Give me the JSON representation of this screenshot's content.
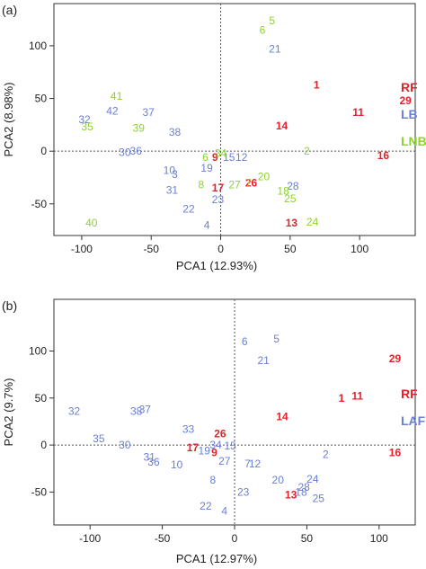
{
  "chart_data": [
    {
      "panel_label": "(a)",
      "type": "scatter",
      "xlabel": "PCA1 (12.93%)",
      "ylabel": "PCA2 (8.98%)",
      "xlim": [
        -120,
        140
      ],
      "ylim": [
        -80,
        140
      ],
      "xticks": [
        -100,
        -50,
        0,
        50,
        100
      ],
      "yticks": [
        -50,
        0,
        50,
        100
      ],
      "grid": false,
      "zero_lines": true,
      "legend_placement": "right",
      "series": [
        {
          "name": "RF",
          "color": "#e8202a",
          "points": [
            {
              "label": "1",
              "x": 69,
              "y": 63
            },
            {
              "label": "29",
              "x": 133,
              "y": 48
            },
            {
              "label": "11",
              "x": 99,
              "y": 37
            },
            {
              "label": "14",
              "x": 44,
              "y": 24
            },
            {
              "label": "16",
              "x": 117,
              "y": -4
            },
            {
              "label": "9",
              "x": -4,
              "y": -6
            },
            {
              "label": "26",
              "x": 22,
              "y": -30
            },
            {
              "label": "17",
              "x": -2,
              "y": -35
            },
            {
              "label": "13",
              "x": 51,
              "y": -68
            }
          ]
        },
        {
          "name": "LB",
          "color": "#6a7fd6",
          "points": [
            {
              "label": "21",
              "x": 39,
              "y": 97
            },
            {
              "label": "37",
              "x": -52,
              "y": 37
            },
            {
              "label": "42",
              "x": -78,
              "y": 38
            },
            {
              "label": "32",
              "x": -98,
              "y": 30
            },
            {
              "label": "38",
              "x": -33,
              "y": 18
            },
            {
              "label": "30",
              "x": -69,
              "y": -1
            },
            {
              "label": "36",
              "x": -61,
              "y": 0
            },
            {
              "label": "15",
              "x": 6,
              "y": -6
            },
            {
              "label": "12",
              "x": 15,
              "y": -6
            },
            {
              "label": "19",
              "x": -10,
              "y": -16
            },
            {
              "label": "10",
              "x": -37,
              "y": -18
            },
            {
              "label": "3",
              "x": -33,
              "y": -22
            },
            {
              "label": "31",
              "x": -35,
              "y": -37
            },
            {
              "label": "28",
              "x": 52,
              "y": -33
            },
            {
              "label": "22",
              "x": -23,
              "y": -55
            },
            {
              "label": "23",
              "x": -2,
              "y": -46
            },
            {
              "label": "4",
              "x": -10,
              "y": -70
            }
          ]
        },
        {
          "name": "LNB",
          "color": "#8fd12e",
          "points": [
            {
              "label": "5",
              "x": 37,
              "y": 124
            },
            {
              "label": "6",
              "x": 30,
              "y": 115
            },
            {
              "label": "41",
              "x": -75,
              "y": 52
            },
            {
              "label": "39",
              "x": -59,
              "y": 22
            },
            {
              "label": "35",
              "x": -96,
              "y": 23
            },
            {
              "label": "34",
              "x": 0,
              "y": -2
            },
            {
              "label": "2",
              "x": 62,
              "y": 0
            },
            {
              "label": "6",
              "x": -11,
              "y": -6
            },
            {
              "label": "20",
              "x": 31,
              "y": -24
            },
            {
              "label": "27",
              "x": 10,
              "y": -32
            },
            {
              "label": "7",
              "x": 20,
              "y": -30
            },
            {
              "label": "8",
              "x": -14,
              "y": -32
            },
            {
              "label": "18",
              "x": 45,
              "y": -38
            },
            {
              "label": "25",
              "x": 50,
              "y": -45
            },
            {
              "label": "24",
              "x": 66,
              "y": -67
            },
            {
              "label": "40",
              "x": -93,
              "y": -68
            }
          ]
        }
      ]
    },
    {
      "panel_label": "(b)",
      "type": "scatter",
      "xlabel": "PCA1 (12.97%)",
      "ylabel": "PCA2 (9.7%)",
      "xlim": [
        -125,
        125
      ],
      "ylim": [
        -85,
        155
      ],
      "xticks": [
        -100,
        -50,
        0,
        50,
        100
      ],
      "yticks": [
        -50,
        0,
        50,
        100
      ],
      "grid": false,
      "zero_lines": true,
      "legend_placement": "right",
      "series": [
        {
          "name": "RF",
          "color": "#e8202a",
          "points": [
            {
              "label": "29",
              "x": 111,
              "y": 92
            },
            {
              "label": "11",
              "x": 85,
              "y": 52
            },
            {
              "label": "1",
              "x": 74,
              "y": 50
            },
            {
              "label": "14",
              "x": 33,
              "y": 30
            },
            {
              "label": "26",
              "x": -10,
              "y": 12
            },
            {
              "label": "16",
              "x": 111,
              "y": -8
            },
            {
              "label": "17",
              "x": -29,
              "y": -3
            },
            {
              "label": "9",
              "x": -14,
              "y": -8
            },
            {
              "label": "13",
              "x": 39,
              "y": -53
            }
          ]
        },
        {
          "name": "LAF",
          "color": "#6a7fd6",
          "points": [
            {
              "label": "6",
              "x": 7,
              "y": 110
            },
            {
              "label": "5",
              "x": 29,
              "y": 113
            },
            {
              "label": "21",
              "x": 20,
              "y": 90
            },
            {
              "label": "32",
              "x": -111,
              "y": 36
            },
            {
              "label": "38",
              "x": -68,
              "y": 36
            },
            {
              "label": "37",
              "x": -62,
              "y": 38
            },
            {
              "label": "33",
              "x": -32,
              "y": 17
            },
            {
              "label": "35",
              "x": -94,
              "y": 7
            },
            {
              "label": "30",
              "x": -76,
              "y": 0
            },
            {
              "label": "34",
              "x": -13,
              "y": 0
            },
            {
              "label": "15",
              "x": -3,
              "y": -1
            },
            {
              "label": "19",
              "x": -21,
              "y": -6
            },
            {
              "label": "2",
              "x": 63,
              "y": -10
            },
            {
              "label": "31",
              "x": -59,
              "y": -13
            },
            {
              "label": "36",
              "x": -56,
              "y": -18
            },
            {
              "label": "10",
              "x": -40,
              "y": -21
            },
            {
              "label": "27",
              "x": -7,
              "y": -17
            },
            {
              "label": "7",
              "x": 9,
              "y": -20
            },
            {
              "label": "12",
              "x": 14,
              "y": -20
            },
            {
              "label": "8",
              "x": -15,
              "y": -37
            },
            {
              "label": "20",
              "x": 30,
              "y": -37
            },
            {
              "label": "24",
              "x": 54,
              "y": -36
            },
            {
              "label": "28",
              "x": 48,
              "y": -45
            },
            {
              "label": "18",
              "x": 46,
              "y": -50
            },
            {
              "label": "25",
              "x": 58,
              "y": -57
            },
            {
              "label": "23",
              "x": 6,
              "y": -50
            },
            {
              "label": "22",
              "x": -20,
              "y": -65
            },
            {
              "label": "4",
              "x": -7,
              "y": -70
            }
          ]
        }
      ]
    }
  ]
}
